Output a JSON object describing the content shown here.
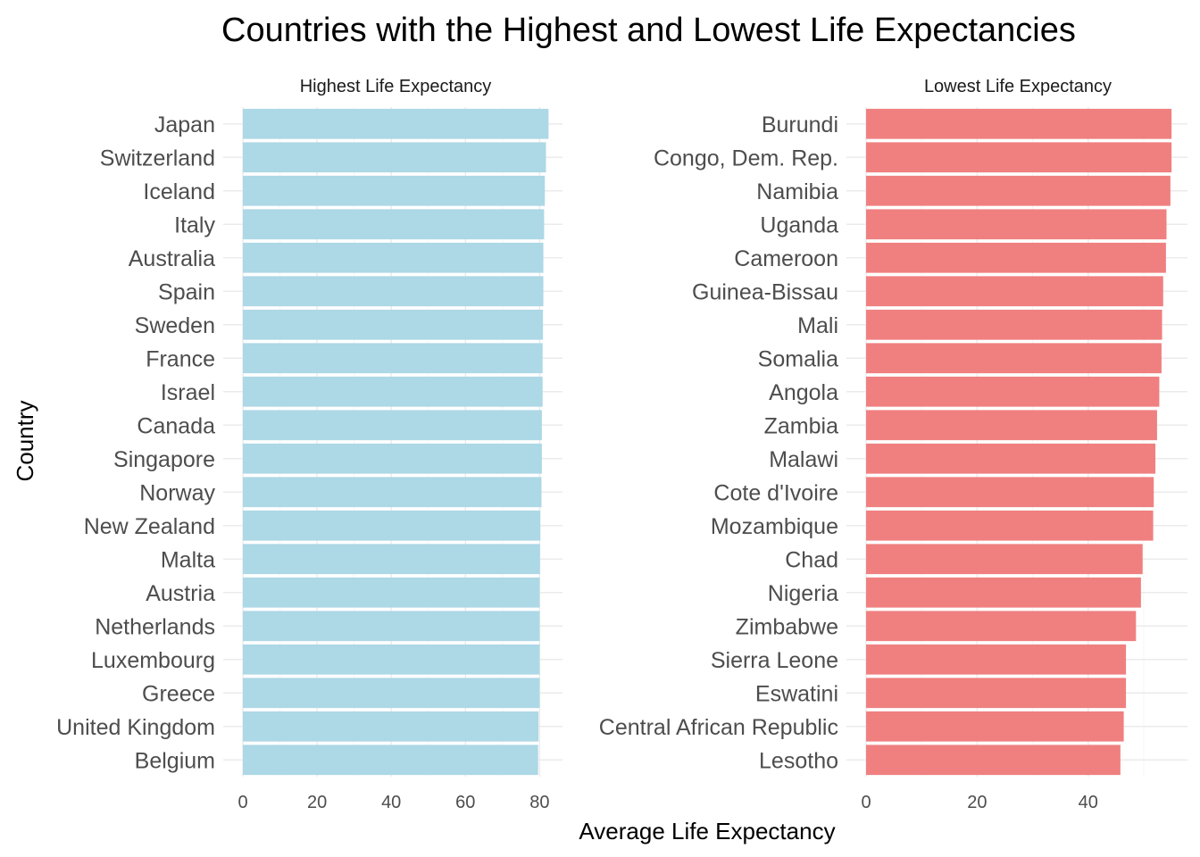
{
  "chart_data": {
    "type": "bar",
    "orientation": "horizontal",
    "title": "Countries with the Highest and Lowest Life Expectancies",
    "xlabel": "Average Life Expectancy",
    "ylabel": "Country",
    "grid": true,
    "legend": "none",
    "panels": [
      {
        "strip_label": "Highest Life Expectancy",
        "color": "#add8e6",
        "xlim": [
          0,
          86
        ],
        "xticks": [
          0,
          20,
          40,
          60,
          80
        ],
        "xtick_labels": [
          "0",
          "20",
          "40",
          "60",
          "80"
        ],
        "categories": [
          "Japan",
          "Switzerland",
          "Iceland",
          "Italy",
          "Australia",
          "Spain",
          "Sweden",
          "France",
          "Israel",
          "Canada",
          "Singapore",
          "Norway",
          "New Zealand",
          "Malta",
          "Austria",
          "Netherlands",
          "Luxembourg",
          "Greece",
          "United Kingdom",
          "Belgium"
        ],
        "values": [
          82.4,
          81.7,
          81.4,
          81.2,
          81.0,
          81.0,
          80.9,
          80.8,
          80.8,
          80.6,
          80.6,
          80.5,
          80.2,
          80.1,
          80.0,
          80.0,
          80.0,
          80.0,
          79.7,
          79.6
        ]
      },
      {
        "strip_label": "Lowest Life Expectancy",
        "color": "#f08080",
        "xlim": [
          0,
          58
        ],
        "xticks": [
          0,
          20,
          40
        ],
        "xtick_labels": [
          "0",
          "20",
          "40"
        ],
        "categories": [
          "Burundi",
          "Congo, Dem. Rep.",
          "Namibia",
          "Uganda",
          "Cameroon",
          "Guinea-Bissau",
          "Mali",
          "Somalia",
          "Angola",
          "Zambia",
          "Malawi",
          "Cote d'Ivoire",
          "Mozambique",
          "Chad",
          "Nigeria",
          "Zimbabwe",
          "Sierra Leone",
          "Eswatini",
          "Central African Republic",
          "Lesotho"
        ],
        "values": [
          55.0,
          55.0,
          54.8,
          54.1,
          54.0,
          53.5,
          53.3,
          53.2,
          52.8,
          52.4,
          52.1,
          51.8,
          51.7,
          49.8,
          49.5,
          48.6,
          46.8,
          46.8,
          46.4,
          45.8
        ]
      }
    ]
  }
}
